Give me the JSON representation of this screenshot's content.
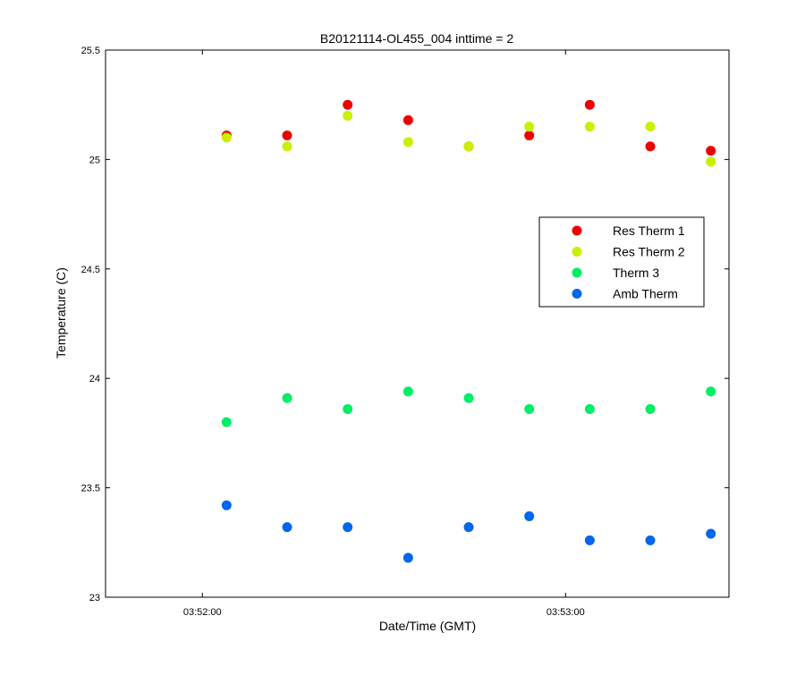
{
  "chart_data": {
    "type": "scatter",
    "title": "B20121114-OL455_004 inttime = 2",
    "xlabel": "Date/Time (GMT)",
    "ylabel": "Temperature (C)",
    "x_unit": "seconds",
    "xlim": [
      -16,
      87
    ],
    "ylim": [
      23,
      25.5
    ],
    "x_ticks": [
      {
        "value": 0,
        "label": "03:52:00"
      },
      {
        "value": 60,
        "label": "03:53:00"
      }
    ],
    "y_ticks": [
      {
        "value": 23,
        "label": "23"
      },
      {
        "value": 23.5,
        "label": "23.5"
      },
      {
        "value": 24,
        "label": "24"
      },
      {
        "value": 24.5,
        "label": "24.5"
      },
      {
        "value": 25,
        "label": "25"
      },
      {
        "value": 25.5,
        "label": "25.5"
      }
    ],
    "x": [
      4,
      14,
      24,
      34,
      44,
      54,
      64,
      74,
      84
    ],
    "grid": false,
    "legend_position": "right",
    "series": [
      {
        "name": "Res Therm 1",
        "color": "#ee0000",
        "values": [
          25.11,
          25.11,
          25.25,
          25.18,
          25.06,
          25.11,
          25.25,
          25.06,
          25.04
        ]
      },
      {
        "name": "Res Therm 2",
        "color": "#ccee00",
        "values": [
          25.1,
          25.06,
          25.2,
          25.08,
          25.06,
          25.15,
          25.15,
          25.15,
          24.99
        ]
      },
      {
        "name": "Therm 3",
        "color": "#00ee66",
        "values": [
          23.8,
          23.91,
          23.86,
          23.94,
          23.91,
          23.86,
          23.86,
          23.86,
          23.94
        ]
      },
      {
        "name": "Amb Therm",
        "color": "#0066ee",
        "values": [
          23.42,
          23.32,
          23.32,
          23.18,
          23.32,
          23.37,
          23.26,
          23.26,
          23.29
        ]
      }
    ]
  }
}
